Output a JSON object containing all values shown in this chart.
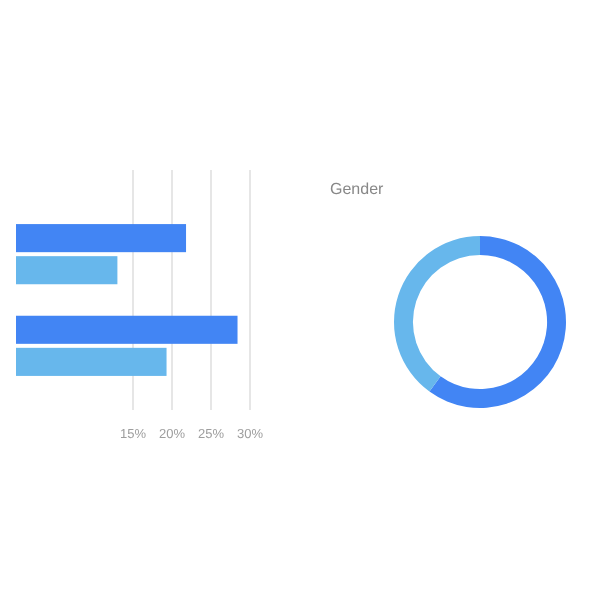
{
  "chart_data": [
    {
      "type": "bar",
      "orientation": "horizontal",
      "categories": [
        null,
        null
      ],
      "series": [
        {
          "color": "#4285f4",
          "values": [
            21.8,
            28.4
          ]
        },
        {
          "color": "#67b7ec",
          "values": [
            13,
            19.3
          ]
        }
      ],
      "xlim": [
        0,
        30
      ],
      "xticks": [
        {
          "value": 15,
          "label": "15%"
        },
        {
          "value": 20,
          "label": "20%"
        },
        {
          "value": 25,
          "label": "25%"
        },
        {
          "value": 30,
          "label": "30%"
        }
      ],
      "grid": "x"
    },
    {
      "type": "donut",
      "title": "Gender",
      "categories": [
        null,
        null
      ],
      "values": [
        60,
        40
      ],
      "colors": [
        "#4285f4",
        "#67b7ec"
      ]
    }
  ]
}
